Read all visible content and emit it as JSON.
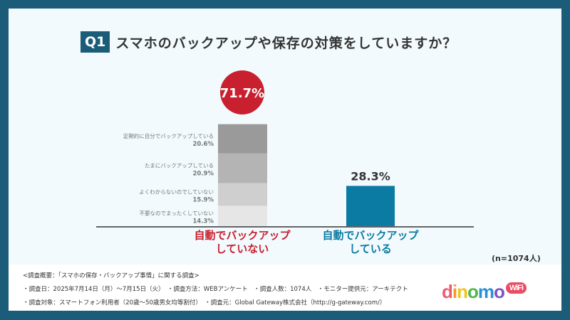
{
  "title": {
    "q": "Q1",
    "text": "スマホのバックアップや保存の対策をしていますか？"
  },
  "chart_data": {
    "type": "bar",
    "stacked": true,
    "categories": [
      "自動でバックアップしていない",
      "自動でバックアップしている"
    ],
    "category_lines": [
      [
        "自動でバックアップ",
        "していない"
      ],
      [
        "自動でバックアップ",
        "している"
      ]
    ],
    "totals": [
      71.7,
      28.3
    ],
    "total_labels": [
      "71.7%",
      "28.3%"
    ],
    "segments": [
      {
        "name": "不要なのでまったくしていない",
        "value": 14.3,
        "label": "14.3%",
        "color": "#e6e6e6"
      },
      {
        "name": "よくわからないのでしていない",
        "value": 15.9,
        "label": "15.9%",
        "color": "#cfcfcf"
      },
      {
        "name": "たまにバックアップしている",
        "value": 20.9,
        "label": "20.9%",
        "color": "#b4b4b4"
      },
      {
        "name": "定期的に自分でバックアップしている",
        "value": 20.6,
        "label": "20.6%",
        "color": "#9a9a9a"
      }
    ],
    "colors": {
      "not": "#c8202e",
      "yes": "#0c7ba3"
    },
    "sample": "(n=1074人)"
  },
  "footer": {
    "line1": "<調査概要：「スマホの保存・バックアップ事情」に関する調査>",
    "line2": "・調査日：2025年7月14日（月）〜7月15日（火）　・調査方法：WEBアンケート　・調査人数：1074人　・モニター提供元：アーキテクト",
    "line3": "・調査対象：スマートフォン利用者（20歳〜50歳男女均等割付）　・調査元：Global Gateway株式会社（http://g-gateway.com/）"
  },
  "logo": {
    "text": "dinomo",
    "badge": "WiFi"
  }
}
